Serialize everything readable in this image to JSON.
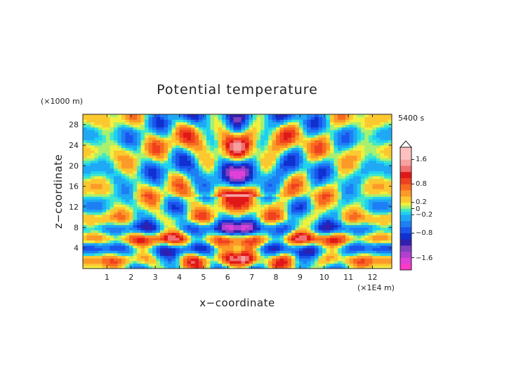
{
  "chart_data": {
    "type": "heatmap",
    "title": "Potential temperature",
    "xlabel": "x−coordinate",
    "ylabel": "z−coordinate",
    "x_unit": "(×1E4 m)",
    "y_unit": "(×1000 m)",
    "time_label": "5400 s",
    "xlim": [
      0,
      12.8
    ],
    "ylim": [
      0,
      30
    ],
    "x_ticks": [
      "1",
      "2",
      "3",
      "4",
      "5",
      "6",
      "7",
      "8",
      "9",
      "10",
      "11",
      "12"
    ],
    "y_ticks": [
      "4",
      "8",
      "12",
      "16",
      "20",
      "24",
      "28"
    ],
    "colorbar": {
      "range": [
        -2.0,
        2.0
      ],
      "tick_labels": [
        "1.6",
        "0.8",
        "0.2",
        "0",
        "−0.2",
        "−0.8",
        "−1.6"
      ],
      "tick_values": [
        1.6,
        0.8,
        0.2,
        0,
        -0.2,
        -0.8,
        -1.6
      ],
      "levels": [
        {
          "min": -2.0,
          "max": -1.8,
          "color": "#ff38c8"
        },
        {
          "min": -1.8,
          "max": -1.6,
          "color": "#e040d8"
        },
        {
          "min": -1.6,
          "max": -1.4,
          "color": "#b040d0"
        },
        {
          "min": -1.4,
          "max": -1.2,
          "color": "#8040c0"
        },
        {
          "min": -1.2,
          "max": -1.0,
          "color": "#3020b0"
        },
        {
          "min": -1.0,
          "max": -0.8,
          "color": "#1030d0"
        },
        {
          "min": -0.8,
          "max": -0.6,
          "color": "#1a55ec"
        },
        {
          "min": -0.6,
          "max": -0.4,
          "color": "#1e7ff5"
        },
        {
          "min": -0.4,
          "max": -0.2,
          "color": "#1ea8f5"
        },
        {
          "min": -0.2,
          "max": -0.1,
          "color": "#20d0f0"
        },
        {
          "min": -0.1,
          "max": 0.0,
          "color": "#40e8c8"
        },
        {
          "min": 0.0,
          "max": 0.1,
          "color": "#a8f070"
        },
        {
          "min": 0.1,
          "max": 0.2,
          "color": "#f0f040"
        },
        {
          "min": 0.2,
          "max": 0.4,
          "color": "#fcc830"
        },
        {
          "min": 0.4,
          "max": 0.6,
          "color": "#fc9a28"
        },
        {
          "min": 0.6,
          "max": 0.8,
          "color": "#f86a20"
        },
        {
          "min": 0.8,
          "max": 1.0,
          "color": "#f04020"
        },
        {
          "min": 1.0,
          "max": 1.2,
          "color": "#e01818"
        },
        {
          "min": 1.2,
          "max": 1.4,
          "color": "#f07070"
        },
        {
          "min": 1.4,
          "max": 1.6,
          "color": "#f8a0a0"
        },
        {
          "min": 1.6,
          "max": 2.0,
          "color": "#ffc0c0"
        }
      ]
    }
  }
}
